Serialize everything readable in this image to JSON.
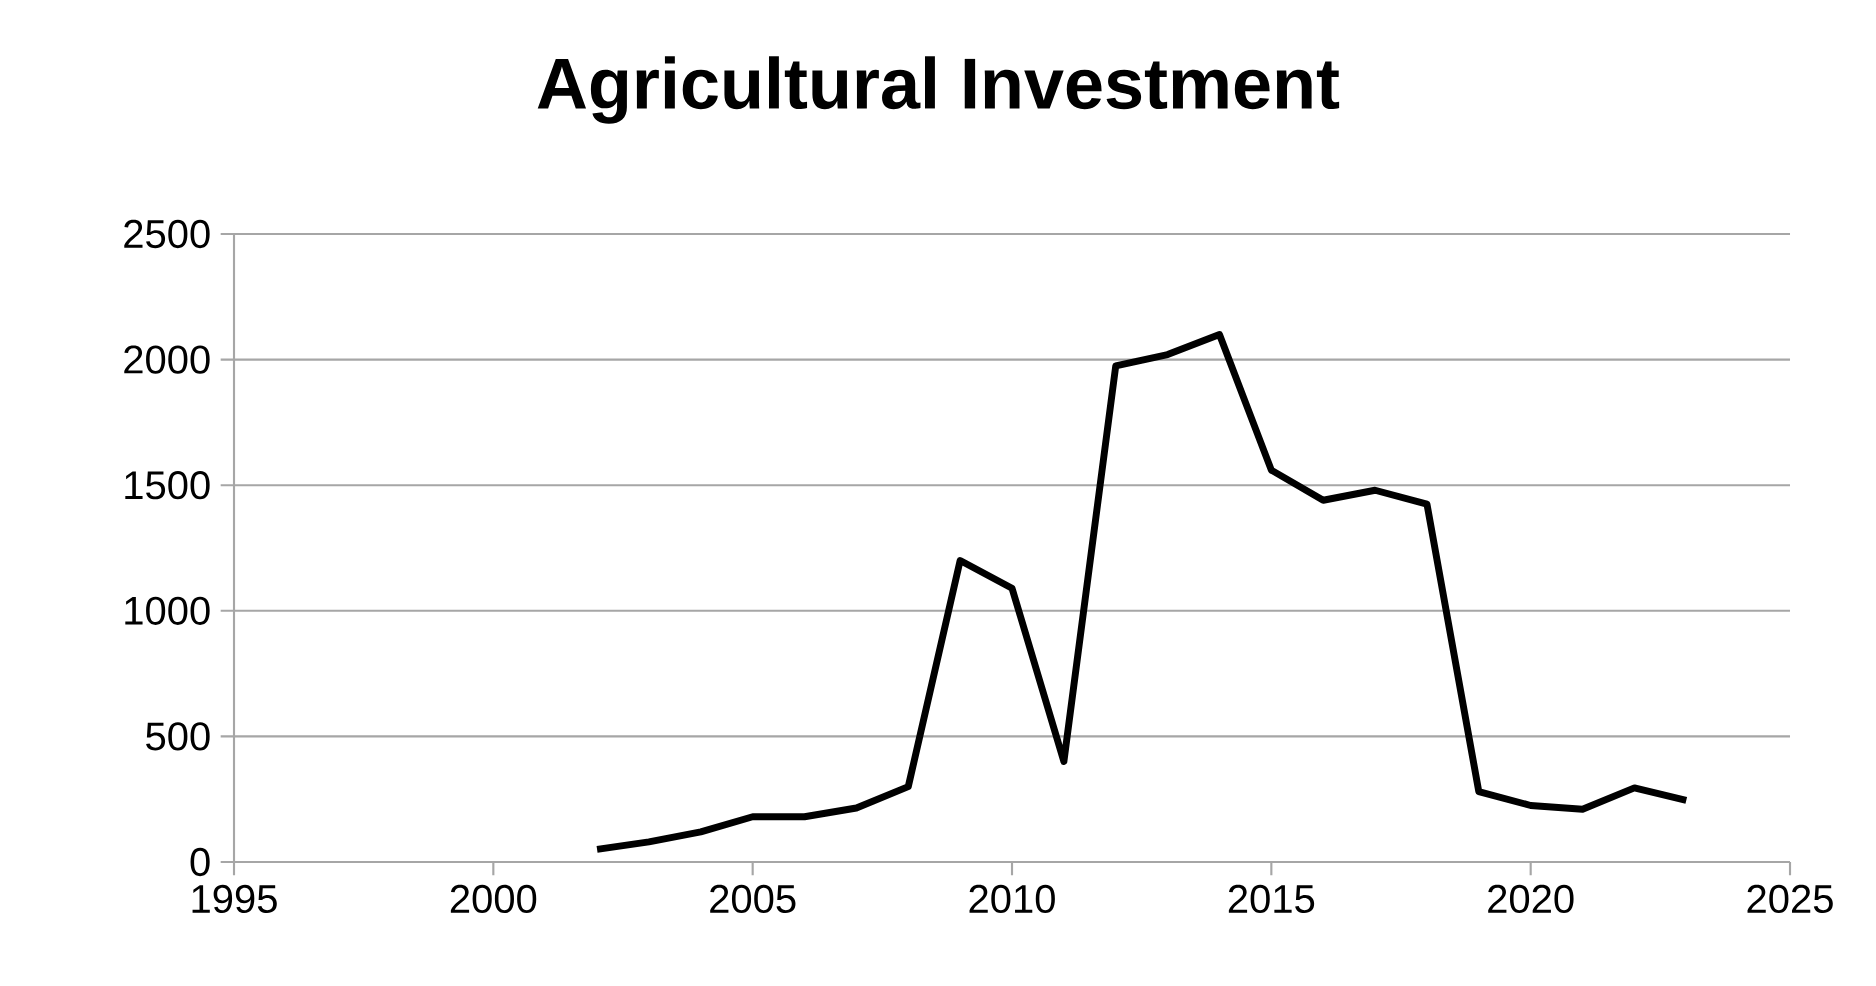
{
  "chart_data": {
    "type": "line",
    "title": "Agricultural Investment",
    "x": [
      2002,
      2003,
      2004,
      2005,
      2006,
      2007,
      2008,
      2009,
      2010,
      2011,
      2012,
      2013,
      2014,
      2015,
      2016,
      2017,
      2018,
      2019,
      2020,
      2021,
      2022,
      2023
    ],
    "series": [
      {
        "color": "#000000",
        "values": [
          50,
          80,
          120,
          180,
          180,
          215,
          300,
          1200,
          1090,
          400,
          1975,
          2020,
          2100,
          1560,
          1440,
          1480,
          1425,
          280,
          225,
          210,
          295,
          245
        ]
      }
    ],
    "xlim": [
      1995,
      2025
    ],
    "xticks": [
      1995,
      2000,
      2005,
      2010,
      2015,
      2020,
      2025
    ],
    "ylim": [
      0,
      2500
    ],
    "yticks": [
      0,
      500,
      1000,
      1500,
      2000,
      2500
    ],
    "grid": "y",
    "marker": "none",
    "line_style": "solid"
  }
}
